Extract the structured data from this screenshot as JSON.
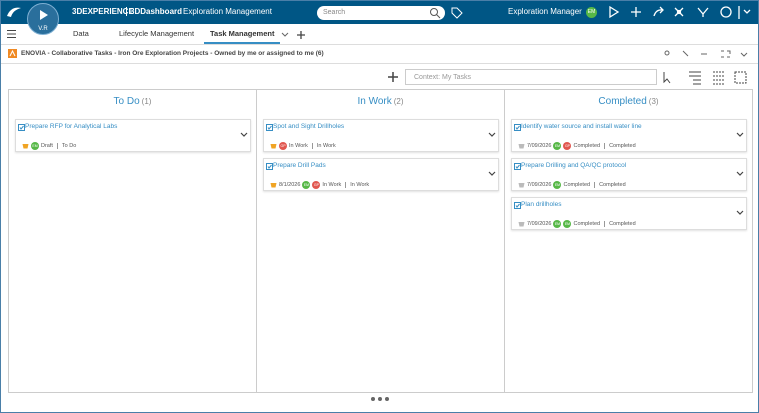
{
  "top_bar": {
    "logo_label": "V.R",
    "brand": "3DEXPERIENCE",
    "dashboard": "3DDashboard",
    "app": "Exploration Management",
    "search_placeholder": "Search",
    "user": "Exploration Manager",
    "user_initials": "EM"
  },
  "tabs": [
    {
      "label": "Data",
      "active": false
    },
    {
      "label": "Lifecycle Management",
      "active": false
    },
    {
      "label": "Task Management",
      "active": true
    }
  ],
  "widget": {
    "title": "ENOVIA - Collaborative Tasks - Iron Ore Exploration Projects - Owned by me or assigned to me (6)",
    "context_placeholder": "Context: My Tasks"
  },
  "columns": [
    {
      "title": "To Do",
      "count": "(1)",
      "cards": [
        {
          "title": "Prepare RFP for Analytical Labs",
          "date": null,
          "assignees": [
            {
              "initials": "EM",
              "color": "#57b847"
            }
          ],
          "status": "Draft",
          "state": "To Do"
        }
      ]
    },
    {
      "title": "In Work",
      "count": "(2)",
      "cards": [
        {
          "title": "Spot and Sight Drillholes",
          "date": null,
          "assignees": [
            {
              "initials": "GP",
              "color": "#e1574f"
            }
          ],
          "status": "In Work",
          "state": "In Work"
        },
        {
          "title": "Prepare Drill Pads",
          "date": "8/1/2026",
          "assignees": [
            {
              "initials": "EM",
              "color": "#57b847"
            },
            {
              "initials": "GP",
              "color": "#e1574f"
            }
          ],
          "status": "In Work",
          "state": "In Work"
        }
      ]
    },
    {
      "title": "Completed",
      "count": "(3)",
      "cards": [
        {
          "title": "Identify water source and install water line",
          "date": "7/09/2026",
          "assignees": [
            {
              "initials": "EM",
              "color": "#57b847"
            },
            {
              "initials": "GP",
              "color": "#e1574f"
            }
          ],
          "status": "Completed",
          "state": "Completed"
        },
        {
          "title": "Prepare Drilling and QA/QC protocol",
          "date": "7/09/2026",
          "assignees": [
            {
              "initials": "EM",
              "color": "#57b847"
            }
          ],
          "status": "Completed",
          "state": "Completed"
        },
        {
          "title": "Plan drillholes",
          "date": "7/09/2026",
          "assignees": [
            {
              "initials": "EM",
              "color": "#57b847"
            },
            {
              "initials": "EM",
              "color": "#57b847"
            }
          ],
          "status": "Completed",
          "state": "Completed"
        }
      ]
    }
  ]
}
